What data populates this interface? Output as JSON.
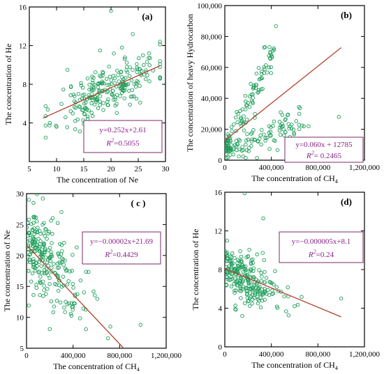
{
  "colors": {
    "points": "#1e9e5a",
    "fit_line": "#b5402b",
    "annotation_text": "#8a1f8a",
    "annotation_border": "#7a2a6a",
    "axis": "#000000"
  },
  "chart_data": [
    {
      "type": "scatter",
      "panel_label": "(a)",
      "xlabel": "The concentration of Ne",
      "ylabel": "The concentration of He",
      "xlim": [
        5,
        30
      ],
      "ylim": [
        0,
        16
      ],
      "xticks": [
        5,
        10,
        15,
        20,
        25,
        30
      ],
      "yticks": [
        0,
        4,
        8,
        12,
        16
      ],
      "xtick_labels": [
        "5",
        "10",
        "15",
        "20",
        "25",
        "30"
      ],
      "ytick_labels": [
        "",
        "4",
        "8",
        "12",
        "16"
      ],
      "fit": {
        "slope": 0.252,
        "intercept": 2.61,
        "x_range": [
          7.5,
          29
        ]
      },
      "annotation": {
        "equation": "y=0.252x+2.61",
        "r2_prefix": "R",
        "r2_value": "=0.5055",
        "position": "bottom-right"
      },
      "cluster": {
        "kind": "linear",
        "n": 230,
        "x_min": 8,
        "x_max": 29,
        "x_center": 19.5,
        "x_spread": 4.8,
        "noise": 1.25,
        "seed": 11
      },
      "outliers": [
        [
          20,
          15.6
        ],
        [
          24,
          13.2
        ],
        [
          18,
          11.5
        ],
        [
          22,
          11.8
        ],
        [
          10,
          3.6
        ],
        [
          12,
          9.5
        ],
        [
          27,
          11.2
        ],
        [
          15,
          3.9
        ]
      ]
    },
    {
      "type": "scatter",
      "panel_label": "(b)",
      "xlabel": "The concentration of CH",
      "xlabel_sub": "4",
      "ylabel": "The concentration of heavy Hydrocarbon",
      "xlim": [
        0,
        1200000
      ],
      "ylim": [
        0,
        100000
      ],
      "xticks": [
        0,
        400000,
        800000,
        1200000
      ],
      "yticks": [
        0,
        20000,
        40000,
        60000,
        80000,
        100000
      ],
      "xtick_labels": [
        "0",
        "400,000",
        "800,000",
        "1,200,000"
      ],
      "ytick_labels": [
        "0",
        "20,000",
        "40,000",
        "60,000",
        "80,000",
        "100,000"
      ],
      "fit": {
        "slope": 0.06,
        "intercept": 12785,
        "x_range": [
          0,
          1000000
        ]
      },
      "annotation": {
        "equation": "y=0.060x + 12785",
        "r2_prefix": "R",
        "r2_value": "= 0.2465",
        "position": "bottom-right"
      },
      "cluster": {
        "kind": "ch4_branches",
        "n": 220,
        "seed": 23
      },
      "outliers": [
        [
          980000,
          28000
        ],
        [
          640000,
          30000
        ],
        [
          720000,
          22000
        ],
        [
          480000,
          31000
        ],
        [
          380000,
          60000
        ],
        [
          560000,
          15000
        ]
      ]
    },
    {
      "type": "scatter",
      "panel_label": "( c )",
      "xlabel": "The concentration of CH",
      "xlabel_sub": "4",
      "ylabel": "The concentration of Ne",
      "xlim": [
        0,
        1200000
      ],
      "ylim": [
        5,
        30
      ],
      "xticks": [
        0,
        400000,
        800000,
        1200000
      ],
      "yticks": [
        5,
        10,
        15,
        20,
        25,
        30
      ],
      "xtick_labels": [
        "0",
        "400,000",
        "800,000",
        "1,200,000"
      ],
      "ytick_labels": [
        "5",
        "10",
        "15",
        "20",
        "25",
        "30"
      ],
      "fit": {
        "slope": -2e-05,
        "intercept": 21.69,
        "x_range": [
          0,
          960000
        ]
      },
      "annotation": {
        "equation": "y=−0.00002x+21.69",
        "r2_prefix": "R",
        "r2_value": "=0.4429",
        "position": "top-right"
      },
      "cluster": {
        "kind": "ch4_linear",
        "n": 240,
        "slope": -1.65e-05,
        "intercept": 22,
        "noise": 3.1,
        "seed": 37
      },
      "outliers": [
        [
          980000,
          8.8
        ],
        [
          20000,
          29
        ],
        [
          60000,
          28.5
        ],
        [
          140000,
          29.2
        ],
        [
          300000,
          27
        ],
        [
          200000,
          8.1
        ],
        [
          720000,
          8.5
        ],
        [
          20000,
          11.9
        ]
      ]
    },
    {
      "type": "scatter",
      "panel_label": "(d)",
      "xlabel": "The concentration of CH",
      "xlabel_sub": "4",
      "ylabel": "The concentration of He",
      "xlim": [
        0,
        1200000
      ],
      "ylim": [
        0,
        16
      ],
      "xticks": [
        0,
        400000,
        800000,
        1200000
      ],
      "yticks": [
        0,
        4,
        8,
        12,
        16
      ],
      "xtick_labels": [
        "0",
        "400,000",
        "800,000",
        "1,200,000"
      ],
      "ytick_labels": [
        "0",
        "4",
        "8",
        "12",
        "16"
      ],
      "fit": {
        "slope": -5e-06,
        "intercept": 8.1,
        "x_range": [
          0,
          1000000
        ]
      },
      "annotation": {
        "equation": "y=−0.000005x+8.1",
        "r2_prefix": "R",
        "r2_value": "=0.24",
        "position": "top-right"
      },
      "cluster": {
        "kind": "ch4_linear",
        "n": 240,
        "slope": -4.2e-06,
        "intercept": 7.8,
        "noise": 1.35,
        "seed": 53
      },
      "outliers": [
        [
          170000,
          15.9
        ],
        [
          1000000,
          5.0
        ],
        [
          330000,
          13.3
        ],
        [
          20000,
          11
        ],
        [
          90000,
          3.9
        ],
        [
          150000,
          3.2
        ],
        [
          600000,
          4.2
        ]
      ]
    }
  ]
}
